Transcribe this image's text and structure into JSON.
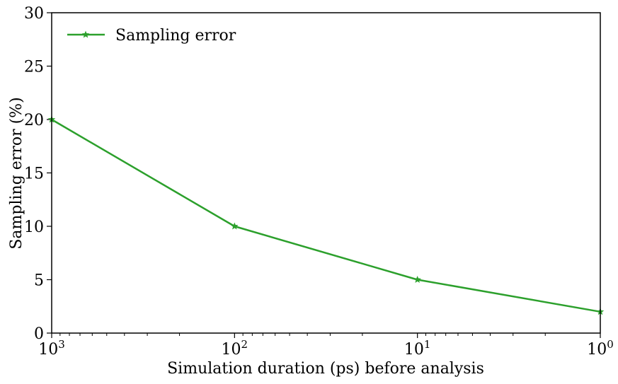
{
  "chart_data": {
    "type": "line",
    "xscale": "log",
    "x_inverted": true,
    "xlim": [
      1000,
      1
    ],
    "ylim": [
      0,
      30
    ],
    "xlabel": "Simulation duration (ps) before analysis",
    "ylabel": "Sampling error (%)",
    "x_ticks": [
      1000,
      100,
      10,
      1
    ],
    "x_tick_labels": [
      {
        "base": "10",
        "exp": "3"
      },
      {
        "base": "10",
        "exp": "2"
      },
      {
        "base": "10",
        "exp": "1"
      },
      {
        "base": "10",
        "exp": "0"
      }
    ],
    "y_ticks": [
      0,
      5,
      10,
      15,
      20,
      25,
      30
    ],
    "y_tick_labels": [
      "0",
      "5",
      "10",
      "15",
      "20",
      "25",
      "30"
    ],
    "grid": false,
    "legend_position": "top-left",
    "series": [
      {
        "name": "Sampling error",
        "color": "#2ca02c",
        "marker": "star",
        "x": [
          1000,
          100,
          10,
          1
        ],
        "y": [
          20,
          10,
          5,
          2
        ]
      }
    ]
  }
}
